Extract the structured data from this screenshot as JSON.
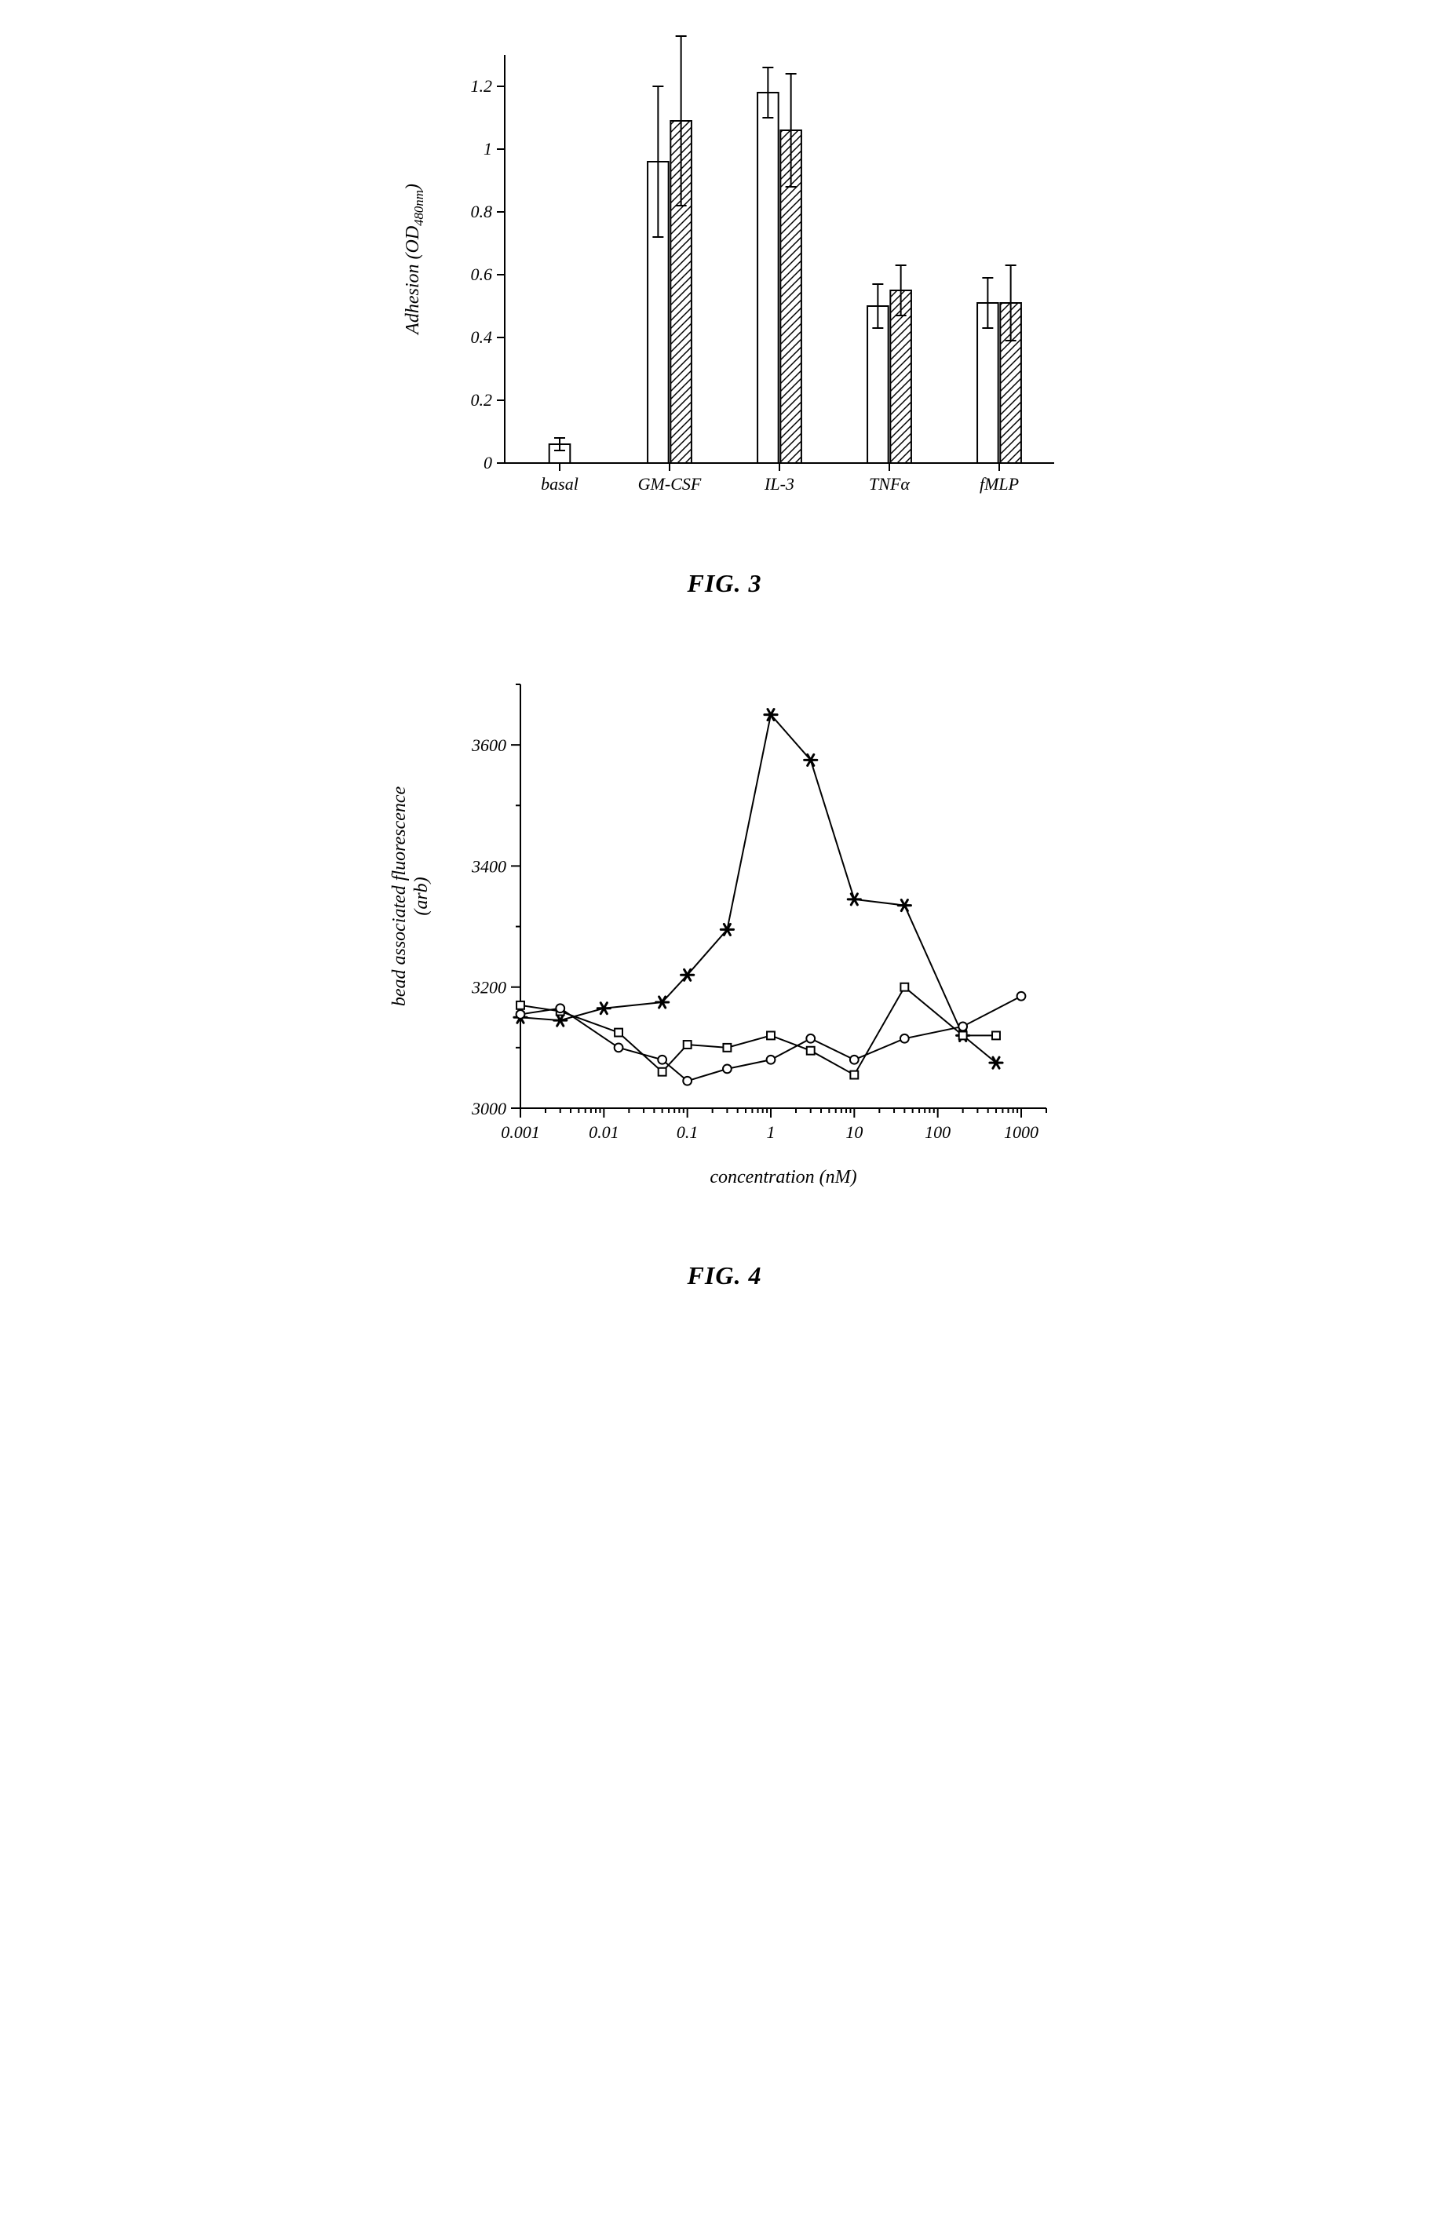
{
  "fig3": {
    "caption": "FIG. 3",
    "type": "bar",
    "ylabel": "Adhesion (OD",
    "ylabel_sub": "480nm",
    "ylabel_close": ")",
    "ylim": [
      0,
      1.3
    ],
    "ytick_step": 0.2,
    "yticks": [
      0,
      0.2,
      0.4,
      0.6,
      0.8,
      1,
      1.2
    ],
    "ytick_labels": [
      "0",
      "0.2",
      "0.4",
      "0.6",
      "0.8",
      "1",
      "1.2"
    ],
    "categories": [
      "basal",
      "GM-CSF",
      "IL-3",
      "TNFα",
      "fMLP"
    ],
    "bar_width": 0.38,
    "groups": [
      {
        "label": "basal",
        "bars": [
          {
            "value": 0.06,
            "err": 0.02,
            "fill": "open"
          }
        ]
      },
      {
        "label": "GM-CSF",
        "bars": [
          {
            "value": 0.96,
            "err": 0.24,
            "fill": "open"
          },
          {
            "value": 1.09,
            "err": 0.27,
            "fill": "hatch"
          }
        ]
      },
      {
        "label": "IL-3",
        "bars": [
          {
            "value": 1.18,
            "err": 0.08,
            "fill": "open"
          },
          {
            "value": 1.06,
            "err": 0.18,
            "fill": "hatch"
          }
        ]
      },
      {
        "label": "TNFα",
        "bars": [
          {
            "value": 0.5,
            "err": 0.07,
            "fill": "open"
          },
          {
            "value": 0.55,
            "err": 0.08,
            "fill": "hatch"
          }
        ]
      },
      {
        "label": "fMLP",
        "bars": [
          {
            "value": 0.51,
            "err": 0.08,
            "fill": "open"
          },
          {
            "value": 0.51,
            "err": 0.12,
            "fill": "hatch"
          }
        ]
      }
    ],
    "stroke_color": "#000000",
    "stroke_width": 2,
    "background_color": "#ffffff",
    "label_fontsize": 24,
    "tick_fontsize": 22
  },
  "fig4": {
    "caption": "FIG. 4",
    "type": "line",
    "ylabel_line1": "bead associated fluorescence",
    "ylabel_line2": "(arb)",
    "xlabel": "concentration (nM)",
    "xscale": "log",
    "xlim": [
      0.001,
      2000
    ],
    "xticks": [
      0.001,
      0.01,
      0.1,
      1,
      10,
      100,
      1000
    ],
    "xtick_labels": [
      "0.001",
      "0.01",
      "0.1",
      "1",
      "10",
      "100",
      "1000"
    ],
    "ylim": [
      3000,
      3700
    ],
    "yticks": [
      3000,
      3200,
      3400,
      3600
    ],
    "ytick_labels": [
      "3000",
      "3200",
      "3400",
      "3600"
    ],
    "series": [
      {
        "marker": "star",
        "data": [
          [
            0.001,
            3150
          ],
          [
            0.003,
            3145
          ],
          [
            0.01,
            3165
          ],
          [
            0.05,
            3175
          ],
          [
            0.1,
            3220
          ],
          [
            0.3,
            3295
          ],
          [
            1,
            3650
          ],
          [
            3,
            3575
          ],
          [
            10,
            3345
          ],
          [
            40,
            3335
          ],
          [
            200,
            3120
          ],
          [
            500,
            3075
          ]
        ]
      },
      {
        "marker": "square",
        "data": [
          [
            0.001,
            3170
          ],
          [
            0.003,
            3160
          ],
          [
            0.015,
            3125
          ],
          [
            0.05,
            3060
          ],
          [
            0.1,
            3105
          ],
          [
            0.3,
            3100
          ],
          [
            1,
            3120
          ],
          [
            3,
            3095
          ],
          [
            10,
            3055
          ],
          [
            40,
            3200
          ],
          [
            200,
            3120
          ],
          [
            500,
            3120
          ]
        ]
      },
      {
        "marker": "circle",
        "data": [
          [
            0.001,
            3155
          ],
          [
            0.003,
            3165
          ],
          [
            0.015,
            3100
          ],
          [
            0.05,
            3080
          ],
          [
            0.1,
            3045
          ],
          [
            0.3,
            3065
          ],
          [
            1,
            3080
          ],
          [
            3,
            3115
          ],
          [
            10,
            3080
          ],
          [
            40,
            3115
          ],
          [
            200,
            3135
          ],
          [
            1000,
            3185
          ]
        ]
      }
    ],
    "stroke_color": "#000000",
    "stroke_width": 2,
    "marker_size": 9,
    "label_fontsize": 24,
    "tick_fontsize": 22,
    "background_color": "#ffffff"
  }
}
